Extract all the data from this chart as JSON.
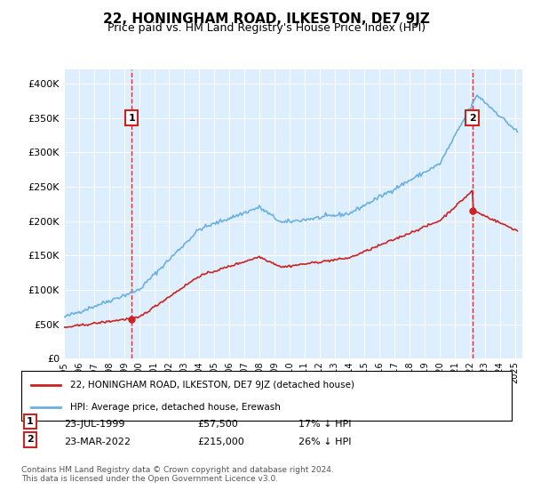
{
  "title": "22, HONINGHAM ROAD, ILKESTON, DE7 9JZ",
  "subtitle": "Price paid vs. HM Land Registry's House Price Index (HPI)",
  "ylabel": "",
  "background_color": "#ddeeff",
  "plot_bg": "#ddeeff",
  "legend_line1": "22, HONINGHAM ROAD, ILKESTON, DE7 9JZ (detached house)",
  "legend_line2": "HPI: Average price, detached house, Erewash",
  "point1_label": "1",
  "point1_date": "23-JUL-1999",
  "point1_price": 57500,
  "point1_pct": "17% ↓ HPI",
  "point2_label": "2",
  "point2_date": "23-MAR-2022",
  "point2_price": 215000,
  "point2_pct": "26% ↓ HPI",
  "footnote": "Contains HM Land Registry data © Crown copyright and database right 2024.\nThis data is licensed under the Open Government Licence v3.0.",
  "ylim": [
    0,
    420000
  ],
  "hpi_color": "#6ab0e0",
  "price_color": "#cc2222",
  "marker_box_color": "#cc2222",
  "dashed_line_color": "#cc2222"
}
